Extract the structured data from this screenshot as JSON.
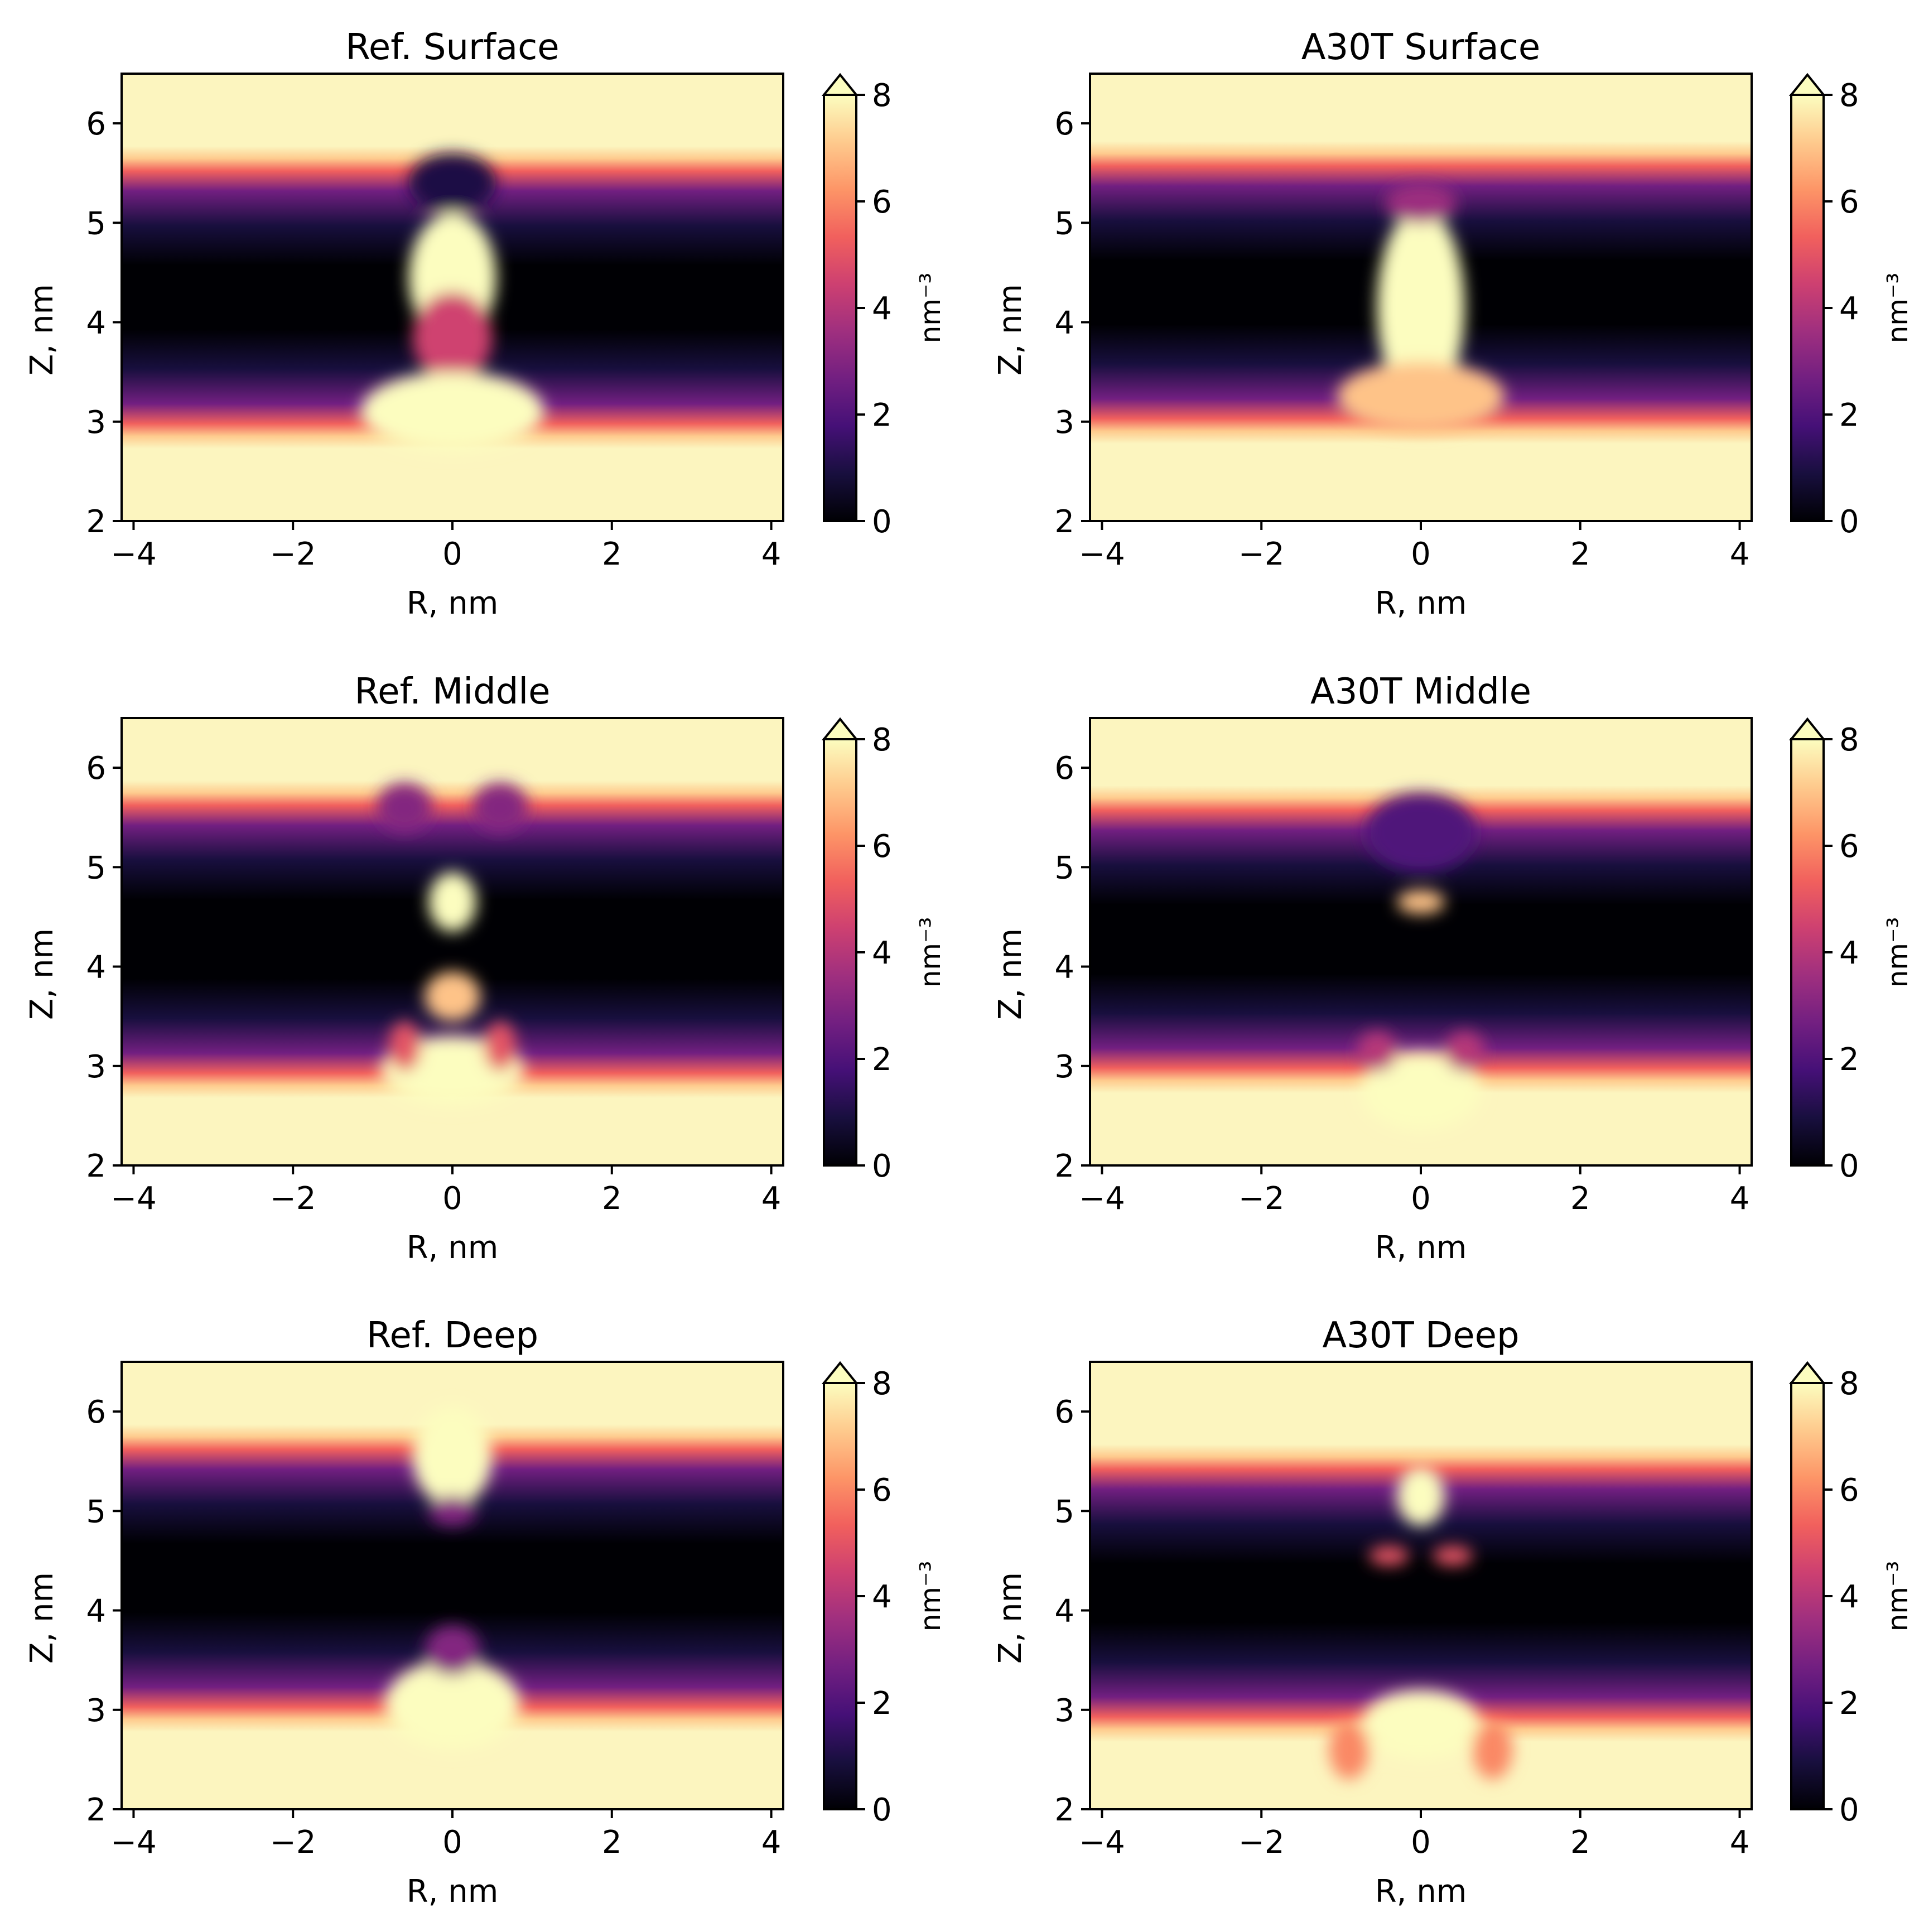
{
  "colormap": {
    "name": "magma",
    "stops": [
      "#000004",
      "#180f3e",
      "#451077",
      "#721f81",
      "#9f2f7f",
      "#cd4071",
      "#f1605d",
      "#fd9567",
      "#feca8d",
      "#fcfdbf"
    ],
    "background": "#fcf5bf",
    "extend": "max"
  },
  "chart_data": [
    {
      "type": "heatmap",
      "title": "Ref. Surface",
      "xlabel": "R, nm",
      "ylabel": "Z, nm",
      "xlim": [
        -4.15,
        4.15
      ],
      "ylim": [
        2,
        6.5
      ],
      "xticks": [
        -4,
        -2,
        0,
        2,
        4
      ],
      "xtick_labels": [
        "−4",
        "−2",
        "0",
        "2",
        "4"
      ],
      "yticks": [
        2,
        3,
        4,
        5,
        6
      ],
      "ytick_labels": [
        "2",
        "3",
        "4",
        "5",
        "6"
      ],
      "colorbar": {
        "label": "nm⁻³",
        "range": [
          0,
          8
        ],
        "ticks": [
          0,
          2,
          4,
          6,
          8
        ],
        "tick_labels": [
          "0",
          "2",
          "4",
          "6",
          "8"
        ]
      },
      "membrane": {
        "upper_interface_z": 5.65,
        "lower_interface_z": 2.85
      },
      "features": [
        {
          "r": 0,
          "z": 4.45,
          "rw": 0.55,
          "zh": 0.65,
          "level": 8
        },
        {
          "r": 0,
          "z": 3.85,
          "rw": 0.5,
          "zh": 0.45,
          "level": 4.5
        },
        {
          "r": 0,
          "z": 3.1,
          "rw": 1.15,
          "zh": 0.4,
          "level": 8
        },
        {
          "r": 0,
          "z": 5.4,
          "rw": 0.55,
          "zh": 0.3,
          "level": 1.0
        }
      ]
    },
    {
      "type": "heatmap",
      "title": "A30T Surface",
      "xlabel": "R, nm",
      "ylabel": "Z, nm",
      "xlim": [
        -4.15,
        4.15
      ],
      "ylim": [
        2,
        6.5
      ],
      "xticks": [
        -4,
        -2,
        0,
        2,
        4
      ],
      "xtick_labels": [
        "−4",
        "−2",
        "0",
        "2",
        "4"
      ],
      "yticks": [
        2,
        3,
        4,
        5,
        6
      ],
      "ytick_labels": [
        "2",
        "3",
        "4",
        "5",
        "6"
      ],
      "colorbar": {
        "label": "nm⁻³",
        "range": [
          0,
          8
        ],
        "ticks": [
          0,
          2,
          4,
          6,
          8
        ],
        "tick_labels": [
          "0",
          "2",
          "4",
          "6",
          "8"
        ]
      },
      "membrane": {
        "upper_interface_z": 5.7,
        "lower_interface_z": 2.9
      },
      "features": [
        {
          "r": 0,
          "z": 4.15,
          "rw": 0.55,
          "zh": 1.0,
          "level": 8
        },
        {
          "r": 0,
          "z": 3.25,
          "rw": 1.05,
          "zh": 0.35,
          "level": 7
        },
        {
          "r": 0,
          "z": 5.2,
          "rw": 0.45,
          "zh": 0.2,
          "level": 3.5
        }
      ]
    },
    {
      "type": "heatmap",
      "title": "Ref. Middle",
      "xlabel": "R, nm",
      "ylabel": "Z, nm",
      "xlim": [
        -4.15,
        4.15
      ],
      "ylim": [
        2,
        6.5
      ],
      "xticks": [
        -4,
        -2,
        0,
        2,
        4
      ],
      "xtick_labels": [
        "−4",
        "−2",
        "0",
        "2",
        "4"
      ],
      "yticks": [
        2,
        3,
        4,
        5,
        6
      ],
      "ytick_labels": [
        "2",
        "3",
        "4",
        "5",
        "6"
      ],
      "colorbar": {
        "label": "nm⁻³",
        "range": [
          0,
          8
        ],
        "ticks": [
          0,
          2,
          4,
          6,
          8
        ],
        "tick_labels": [
          "0",
          "2",
          "4",
          "6",
          "8"
        ]
      },
      "membrane": {
        "upper_interface_z": 5.75,
        "lower_interface_z": 2.8
      },
      "features": [
        {
          "r": 0,
          "z": 4.65,
          "rw": 0.3,
          "zh": 0.3,
          "level": 8
        },
        {
          "r": 0,
          "z": 3.7,
          "rw": 0.35,
          "zh": 0.25,
          "level": 7
        },
        {
          "r": 0,
          "z": 2.95,
          "rw": 0.9,
          "zh": 0.35,
          "level": 8
        },
        {
          "r": -0.6,
          "z": 5.6,
          "rw": 0.35,
          "zh": 0.25,
          "level": 3
        },
        {
          "r": 0.6,
          "z": 5.6,
          "rw": 0.35,
          "zh": 0.25,
          "level": 3
        },
        {
          "r": -0.6,
          "z": 3.2,
          "rw": 0.2,
          "zh": 0.25,
          "level": 5
        },
        {
          "r": 0.6,
          "z": 3.2,
          "rw": 0.2,
          "zh": 0.25,
          "level": 5
        }
      ]
    },
    {
      "type": "heatmap",
      "title": "A30T Middle",
      "xlabel": "R, nm",
      "ylabel": "Z, nm",
      "xlim": [
        -4.15,
        4.15
      ],
      "ylim": [
        2,
        6.5
      ],
      "xticks": [
        -4,
        -2,
        0,
        2,
        4
      ],
      "xtick_labels": [
        "−4",
        "−2",
        "0",
        "2",
        "4"
      ],
      "yticks": [
        2,
        3,
        4,
        5,
        6
      ],
      "ytick_labels": [
        "2",
        "3",
        "4",
        "5",
        "6"
      ],
      "colorbar": {
        "label": "nm⁻³",
        "range": [
          0,
          8
        ],
        "ticks": [
          0,
          2,
          4,
          6,
          8
        ],
        "tick_labels": [
          "0",
          "2",
          "4",
          "6",
          "8"
        ]
      },
      "membrane": {
        "upper_interface_z": 5.7,
        "lower_interface_z": 2.85
      },
      "features": [
        {
          "r": 0,
          "z": 4.65,
          "rw": 0.3,
          "zh": 0.12,
          "level": 7
        },
        {
          "r": 0,
          "z": 5.35,
          "rw": 0.7,
          "zh": 0.4,
          "level": 2
        },
        {
          "r": 0,
          "z": 2.75,
          "rw": 0.75,
          "zh": 0.4,
          "level": 8
        },
        {
          "r": -0.55,
          "z": 3.15,
          "rw": 0.25,
          "zh": 0.2,
          "level": 4
        },
        {
          "r": 0.55,
          "z": 3.15,
          "rw": 0.25,
          "zh": 0.2,
          "level": 4
        }
      ]
    },
    {
      "type": "heatmap",
      "title": "Ref. Deep",
      "xlabel": "R, nm",
      "ylabel": "Z, nm",
      "xlim": [
        -4.15,
        4.15
      ],
      "ylim": [
        2,
        6.5
      ],
      "xticks": [
        -4,
        -2,
        0,
        2,
        4
      ],
      "xtick_labels": [
        "−4",
        "−2",
        "0",
        "2",
        "4"
      ],
      "yticks": [
        2,
        3,
        4,
        5,
        6
      ],
      "ytick_labels": [
        "2",
        "3",
        "4",
        "5",
        "6"
      ],
      "colorbar": {
        "label": "nm⁻³",
        "range": [
          0,
          8
        ],
        "ticks": [
          0,
          2,
          4,
          6,
          8
        ],
        "tick_labels": [
          "0",
          "2",
          "4",
          "6",
          "8"
        ]
      },
      "membrane": {
        "upper_interface_z": 5.75,
        "lower_interface_z": 2.9
      },
      "features": [
        {
          "r": 0,
          "z": 5.55,
          "rw": 0.5,
          "zh": 0.5,
          "level": 8
        },
        {
          "r": 0,
          "z": 3.05,
          "rw": 0.85,
          "zh": 0.45,
          "level": 8
        },
        {
          "r": 0,
          "z": 3.6,
          "rw": 0.35,
          "zh": 0.25,
          "level": 3
        },
        {
          "r": 0,
          "z": 5.0,
          "rw": 0.3,
          "zh": 0.15,
          "level": 3
        }
      ]
    },
    {
      "type": "heatmap",
      "title": "A30T Deep",
      "xlabel": "R, nm",
      "ylabel": "Z, nm",
      "xlim": [
        -4.15,
        4.15
      ],
      "ylim": [
        2,
        6.5
      ],
      "xticks": [
        -4,
        -2,
        0,
        2,
        4
      ],
      "xtick_labels": [
        "−4",
        "−2",
        "0",
        "2",
        "4"
      ],
      "yticks": [
        2,
        3,
        4,
        5,
        6
      ],
      "ytick_labels": [
        "2",
        "3",
        "4",
        "5",
        "6"
      ],
      "colorbar": {
        "label": "nm⁻³",
        "range": [
          0,
          8
        ],
        "ticks": [
          0,
          2,
          4,
          6,
          8
        ],
        "tick_labels": [
          "0",
          "2",
          "4",
          "6",
          "8"
        ]
      },
      "membrane": {
        "upper_interface_z": 5.55,
        "lower_interface_z": 2.8
      },
      "features": [
        {
          "r": 0,
          "z": 5.15,
          "rw": 0.3,
          "zh": 0.3,
          "level": 8
        },
        {
          "r": 0,
          "z": 2.85,
          "rw": 0.75,
          "zh": 0.35,
          "level": 8
        },
        {
          "r": -0.4,
          "z": 4.55,
          "rw": 0.25,
          "zh": 0.1,
          "level": 5
        },
        {
          "r": 0.4,
          "z": 4.55,
          "rw": 0.25,
          "zh": 0.1,
          "level": 5
        },
        {
          "r": -0.9,
          "z": 2.6,
          "rw": 0.25,
          "zh": 0.3,
          "level": 6
        },
        {
          "r": 0.9,
          "z": 2.6,
          "rw": 0.25,
          "zh": 0.3,
          "level": 6
        }
      ]
    }
  ]
}
